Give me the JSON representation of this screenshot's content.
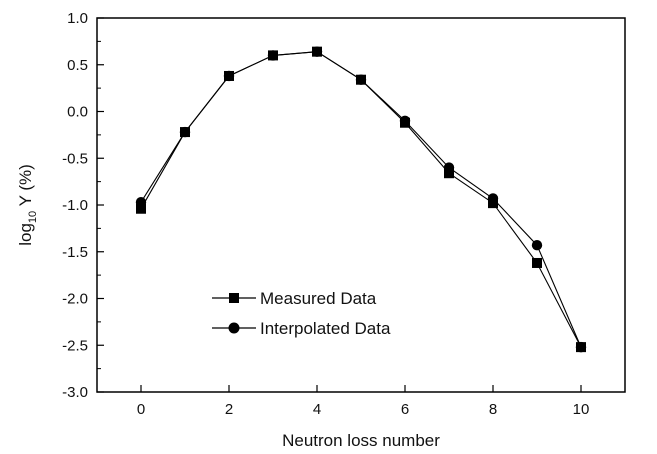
{
  "chart_data": {
    "type": "line",
    "xlabel": "Neutron loss number",
    "ylabel_main": "log",
    "ylabel_sub": "10",
    "ylabel_rest": " Y (%)",
    "xlim": [
      -1,
      11
    ],
    "ylim": [
      -3.0,
      1.0
    ],
    "x_ticks": [
      0,
      2,
      4,
      6,
      8,
      10
    ],
    "x_tick_labels": [
      "0",
      "2",
      "4",
      "6",
      "8",
      "10"
    ],
    "y_ticks": [
      -3.0,
      -2.5,
      -2.0,
      -1.5,
      -1.0,
      -0.5,
      0.0,
      0.5,
      1.0
    ],
    "y_tick_labels": [
      "-3.0",
      "-2.5",
      "-2.0",
      "-1.5",
      "-1.0",
      "-0.5",
      "0.0",
      "0.5",
      "1.0"
    ],
    "grid": false,
    "legend_position": "lower-left",
    "series": [
      {
        "name": "Measured Data",
        "marker": "square",
        "x": [
          0,
          1,
          2,
          3,
          4,
          5,
          6,
          7,
          8,
          9,
          10
        ],
        "values": [
          -1.04,
          -0.22,
          0.38,
          0.6,
          0.64,
          0.34,
          -0.12,
          -0.66,
          -0.98,
          -1.62,
          -2.52
        ]
      },
      {
        "name": "Interpolated Data",
        "marker": "circle",
        "x": [
          0,
          1,
          2,
          3,
          4,
          5,
          6,
          7,
          8,
          9,
          10
        ],
        "values": [
          -0.97,
          -0.22,
          0.38,
          0.6,
          0.64,
          0.34,
          -0.1,
          -0.6,
          -0.93,
          -1.43,
          -2.52
        ]
      }
    ]
  }
}
